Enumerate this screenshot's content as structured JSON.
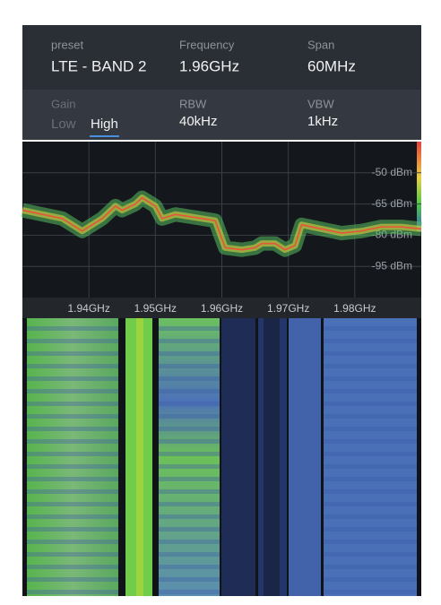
{
  "header": {
    "preset_label": "preset",
    "preset_value": "LTE - BAND 2",
    "frequency_label": "Frequency",
    "frequency_value": "1.96GHz",
    "span_label": "Span",
    "span_value": "60MHz",
    "gain_label": "Gain",
    "gain_low": "Low",
    "gain_high": "High",
    "rbw_label": "RBW",
    "rbw_value": "40kHz",
    "vbw_label": "VBW",
    "vbw_value": "1kHz"
  },
  "chart_data": {
    "type": "line",
    "x": [
      1.93,
      1.933,
      1.936,
      1.939,
      1.942,
      1.944,
      1.945,
      1.947,
      1.948,
      1.95,
      1.951,
      1.953,
      1.955,
      1.957,
      1.959,
      1.9605,
      1.963,
      1.965,
      1.966,
      1.968,
      1.9695,
      1.971,
      1.972,
      1.975,
      1.978,
      1.981,
      1.984,
      1.987,
      1.99
    ],
    "series": [
      {
        "color": "#e8553a",
        "values": [
          -68,
          -70,
          -72,
          -78,
          -72,
          -66,
          -68,
          -65,
          -62,
          -66,
          -72,
          -70,
          -71,
          -72,
          -73,
          -86,
          -87,
          -86,
          -84,
          -84,
          -87,
          -85,
          -75,
          -77,
          -79,
          -78,
          -76,
          -76,
          -77
        ]
      }
    ],
    "xlim": [
      1.93,
      1.99
    ],
    "ylim": [
      -110,
      -35
    ],
    "xticks": [
      {
        "value": 1.94,
        "label": "1.94GHz"
      },
      {
        "value": 1.95,
        "label": "1.95GHz"
      },
      {
        "value": 1.96,
        "label": "1.96GHz"
      },
      {
        "value": 1.97,
        "label": "1.97GHz"
      },
      {
        "value": 1.98,
        "label": "1.98GHz"
      }
    ],
    "yticks": [
      {
        "value": -50,
        "label": "-50 dBm"
      },
      {
        "value": -65,
        "label": "-65 dBm"
      },
      {
        "value": -80,
        "label": "-80 dBm"
      },
      {
        "value": -95,
        "label": "-95 dBm"
      }
    ],
    "grid": true
  }
}
